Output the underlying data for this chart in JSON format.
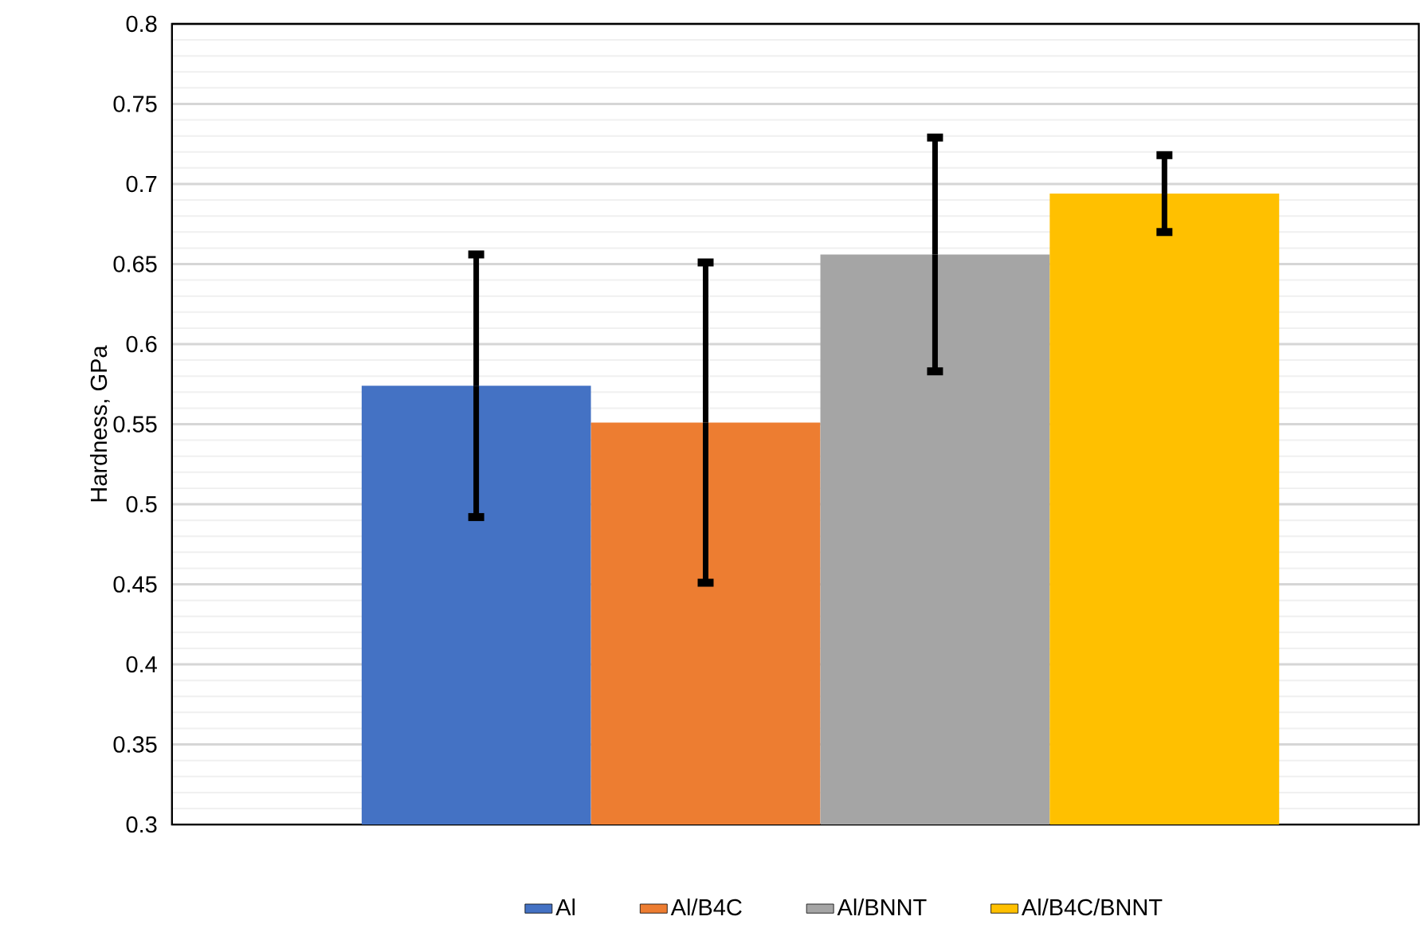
{
  "chart_data": {
    "type": "bar",
    "ylabel": "Hardness, GPa",
    "categories": [
      null
    ],
    "series": [
      {
        "name": "Al",
        "color": "#4472c4",
        "values": [
          0.574
        ],
        "errors": [
          0.082
        ]
      },
      {
        "name": "Al/B4C",
        "color": "#ed7d31",
        "values": [
          0.551
        ],
        "errors": [
          0.1
        ]
      },
      {
        "name": "Al/BNNT",
        "color": "#a5a5a5",
        "values": [
          0.656
        ],
        "errors": [
          0.073
        ]
      },
      {
        "name": "Al/B4C/BNNT",
        "color": "#ffc000",
        "values": [
          0.694
        ],
        "errors": [
          0.024
        ]
      }
    ],
    "ylim": [
      0.3,
      0.8
    ],
    "yticks": [
      0.3,
      0.35,
      0.4,
      0.45,
      0.5,
      0.55,
      0.6,
      0.65,
      0.7,
      0.75,
      0.8
    ],
    "grid": "y",
    "legend": "bottom"
  }
}
